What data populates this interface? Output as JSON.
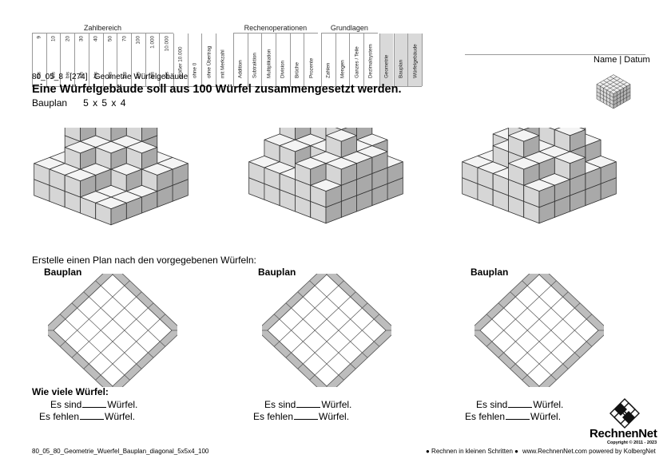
{
  "header": {
    "groups": [
      "Zahlbereich",
      "Rechenoperationen",
      "Grundlagen"
    ],
    "zahlbereich": [
      {
        "bis": "bis",
        "val": "9"
      },
      {
        "bis": "bis",
        "val": "10"
      },
      {
        "bis": "bis",
        "val": "20"
      },
      {
        "bis": "bis",
        "val": "30"
      },
      {
        "bis": "bis",
        "val": "40"
      },
      {
        "bis": "bis",
        "val": "50"
      },
      {
        "bis": "bis",
        "val": "70"
      },
      {
        "bis": "bis",
        "val": "100"
      },
      {
        "bis": "bis",
        "val": "1.000"
      },
      {
        "bis": "bis",
        "val": "10.000"
      }
    ],
    "extra_cols": [
      "größer 10.000",
      "ohne 0",
      "ohne Übertrag",
      "mit Merkzahl"
    ],
    "rechen_cols": [
      "Addition",
      "Subtraktion",
      "Multiplikation",
      "Division",
      "Brüche",
      "Prozente"
    ],
    "grund_cols": [
      "Zahlen",
      "Mengen",
      "Ganzes / Teile",
      "Dezimalsystem"
    ],
    "topic_cols": [
      "Geometrie",
      "Bauplan",
      "Würfelgebäude"
    ],
    "name_datum": "Name | Datum"
  },
  "worksheet": {
    "code": "80_05_8",
    "number": "[274]",
    "topic": "Geometrie Würfelgebäude",
    "title": "Eine Würfelgebäude soll aus 100 Würfel zusammengesetzt werden.",
    "bauplan_label": "Bauplan",
    "dims": "5  x  5  x  4",
    "instruction": "Erstelle einen Plan nach den vorgegebenen Würfeln:",
    "plans": [
      {
        "label": "Bauplan"
      },
      {
        "label": "Bauplan"
      },
      {
        "label": "Bauplan"
      }
    ],
    "question": "Wie viele Würfel:",
    "es_sind": "Es sind",
    "es_fehlen": "Es fehlen",
    "wuerfel": "Würfel."
  },
  "footer": {
    "filename": "80_05_80_Geometrie_Wuerfel_Bauplan_diagonal_5x5x4_100",
    "slogan": "● Rechnen in kleinen Schritten ●",
    "website": "www.RechnenNet.com powered by KolbergNet",
    "brand": "RechnenNet",
    "copyright": "Copyright © 2011 - 2023"
  }
}
